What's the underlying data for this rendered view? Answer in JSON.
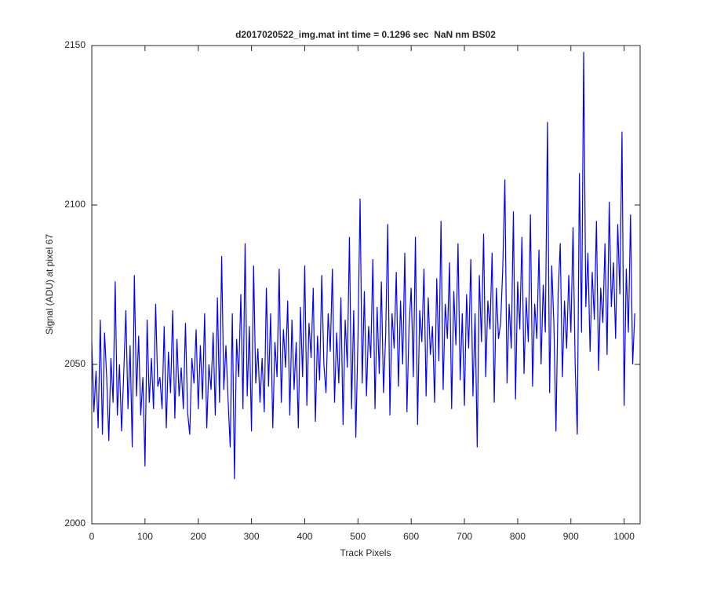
{
  "chart_data": {
    "type": "line",
    "title": "d2017020522_img.mat int time = 0.1296 sec  NaN nm BS02",
    "x_label": "Track Pixels",
    "y_label": "Signal (ADU) at pixel 67",
    "color": "#0000ff",
    "xlim": [
      0,
      1030
    ],
    "ylim": [
      2000,
      2150
    ],
    "xticks": [
      0,
      100,
      200,
      300,
      400,
      500,
      600,
      700,
      800,
      900,
      1000
    ],
    "yticks": [
      2000,
      2050,
      2100,
      2150
    ],
    "x": [
      0,
      4,
      8,
      12,
      16,
      20,
      24,
      28,
      32,
      36,
      40,
      44,
      48,
      52,
      56,
      60,
      64,
      68,
      72,
      76,
      80,
      84,
      88,
      92,
      96,
      100,
      104,
      108,
      112,
      116,
      120,
      124,
      128,
      132,
      136,
      140,
      144,
      148,
      152,
      156,
      160,
      164,
      168,
      172,
      176,
      180,
      184,
      188,
      192,
      196,
      200,
      204,
      208,
      212,
      216,
      220,
      224,
      228,
      232,
      236,
      240,
      244,
      248,
      252,
      256,
      260,
      264,
      268,
      272,
      276,
      280,
      284,
      288,
      292,
      296,
      300,
      304,
      308,
      312,
      316,
      320,
      324,
      328,
      332,
      336,
      340,
      344,
      348,
      352,
      356,
      360,
      364,
      368,
      372,
      376,
      380,
      384,
      388,
      392,
      396,
      400,
      404,
      408,
      412,
      416,
      420,
      424,
      428,
      432,
      436,
      440,
      444,
      448,
      452,
      456,
      460,
      464,
      468,
      472,
      476,
      480,
      484,
      488,
      492,
      496,
      500,
      504,
      508,
      512,
      516,
      520,
      524,
      528,
      532,
      536,
      540,
      544,
      548,
      552,
      556,
      560,
      564,
      568,
      572,
      576,
      580,
      584,
      588,
      592,
      596,
      600,
      604,
      608,
      612,
      616,
      620,
      624,
      628,
      632,
      636,
      640,
      644,
      648,
      652,
      656,
      660,
      664,
      668,
      672,
      676,
      680,
      684,
      688,
      692,
      696,
      700,
      704,
      708,
      712,
      716,
      720,
      724,
      728,
      732,
      736,
      740,
      744,
      748,
      752,
      756,
      760,
      764,
      768,
      772,
      776,
      780,
      784,
      788,
      792,
      796,
      800,
      804,
      808,
      812,
      816,
      820,
      824,
      828,
      832,
      836,
      840,
      844,
      848,
      852,
      856,
      860,
      864,
      868,
      872,
      876,
      880,
      884,
      888,
      892,
      896,
      900,
      904,
      908,
      912,
      916,
      920,
      924,
      928,
      932,
      936,
      940,
      944,
      948,
      952,
      956,
      960,
      964,
      968,
      972,
      976,
      980,
      984,
      988,
      992,
      996,
      1000,
      1004,
      1008,
      1012,
      1016,
      1020
    ],
    "values": [
      2057,
      2035,
      2048,
      2030,
      2064,
      2028,
      2060,
      2046,
      2026,
      2052,
      2038,
      2076,
      2034,
      2050,
      2029,
      2047,
      2067,
      2036,
      2056,
      2024,
      2078,
      2040,
      2059,
      2034,
      2046,
      2018,
      2064,
      2038,
      2052,
      2036,
      2069,
      2043,
      2046,
      2036,
      2062,
      2030,
      2054,
      2041,
      2067,
      2033,
      2058,
      2040,
      2049,
      2036,
      2063,
      2035,
      2028,
      2052,
      2044,
      2061,
      2036,
      2056,
      2039,
      2066,
      2030,
      2050,
      2042,
      2060,
      2034,
      2071,
      2038,
      2084,
      2042,
      2056,
      2039,
      2024,
      2066,
      2014,
      2058,
      2046,
      2072,
      2036,
      2088,
      2040,
      2062,
      2029,
      2081,
      2044,
      2055,
      2038,
      2052,
      2035,
      2074,
      2043,
      2066,
      2030,
      2057,
      2046,
      2080,
      2038,
      2061,
      2049,
      2070,
      2034,
      2064,
      2042,
      2057,
      2030,
      2068,
      2046,
      2081,
      2037,
      2063,
      2052,
      2074,
      2032,
      2059,
      2045,
      2078,
      2050,
      2041,
      2066,
      2054,
      2080,
      2038,
      2060,
      2044,
      2071,
      2031,
      2064,
      2049,
      2090,
      2036,
      2067,
      2027,
      2058,
      2102,
      2044,
      2073,
      2040,
      2062,
      2052,
      2083,
      2036,
      2068,
      2047,
      2076,
      2041,
      2059,
      2094,
      2034,
      2066,
      2055,
      2079,
      2043,
      2070,
      2050,
      2085,
      2035,
      2062,
      2074,
      2046,
      2090,
      2031,
      2067,
      2057,
      2080,
      2040,
      2071,
      2053,
      2062,
      2038,
      2077,
      2051,
      2095,
      2042,
      2069,
      2058,
      2082,
      2036,
      2073,
      2056,
      2088,
      2045,
      2066,
      2037,
      2072,
      2055,
      2083,
      2040,
      2066,
      2024,
      2078,
      2057,
      2091,
      2046,
      2070,
      2061,
      2085,
      2038,
      2074,
      2058,
      2063,
      2080,
      2108,
      2044,
      2069,
      2055,
      2098,
      2039,
      2076,
      2061,
      2090,
      2047,
      2071,
      2057,
      2097,
      2043,
      2069,
      2058,
      2086,
      2050,
      2075,
      2060,
      2126,
      2041,
      2081,
      2063,
      2029,
      2072,
      2088,
      2046,
      2070,
      2055,
      2078,
      2060,
      2093,
      2050,
      2028,
      2110,
      2060,
      2148,
      2068,
      2085,
      2054,
      2079,
      2064,
      2095,
      2048,
      2074,
      2063,
      2088,
      2053,
      2101,
      2068,
      2082,
      2058,
      2094,
      2072,
      2123,
      2037,
      2080,
      2060,
      2097,
      2050,
      2066
    ]
  }
}
